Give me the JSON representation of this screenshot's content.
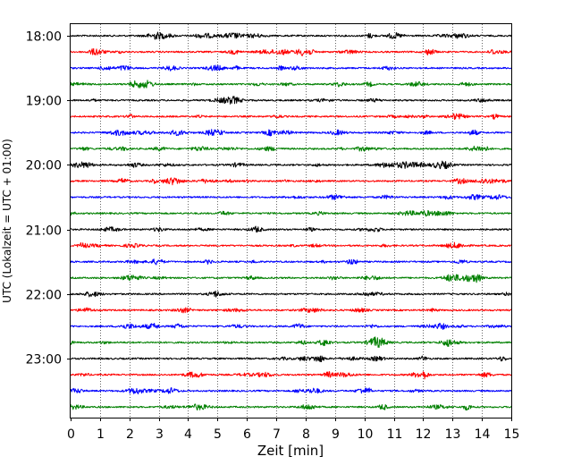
{
  "chart_data": {
    "type": "line",
    "title": "",
    "xlabel": "Zeit  [min]",
    "ylabel": "UTC (Lokalzeit = UTC + 01:00)",
    "xlim": [
      0,
      15
    ],
    "x_ticks": [
      "0",
      "1",
      "2",
      "3",
      "4",
      "5",
      "6",
      "7",
      "8",
      "9",
      "10",
      "11",
      "12",
      "13",
      "14",
      "15"
    ],
    "y_tick_labels": [
      "18:00",
      "19:00",
      "20:00",
      "21:00",
      "22:00",
      "23:00"
    ],
    "grid": "vertical dotted",
    "trace_interval_minutes": 15,
    "trace_colors": [
      "#000000",
      "#ff0000",
      "#0000ff",
      "#008000"
    ],
    "series": [
      {
        "start": "18:00",
        "color": "#000000"
      },
      {
        "start": "18:15",
        "color": "#ff0000"
      },
      {
        "start": "18:30",
        "color": "#0000ff"
      },
      {
        "start": "18:45",
        "color": "#008000"
      },
      {
        "start": "19:00",
        "color": "#000000"
      },
      {
        "start": "19:15",
        "color": "#ff0000"
      },
      {
        "start": "19:30",
        "color": "#0000ff"
      },
      {
        "start": "19:45",
        "color": "#008000"
      },
      {
        "start": "20:00",
        "color": "#000000"
      },
      {
        "start": "20:15",
        "color": "#ff0000"
      },
      {
        "start": "20:30",
        "color": "#0000ff"
      },
      {
        "start": "20:45",
        "color": "#008000"
      },
      {
        "start": "21:00",
        "color": "#000000"
      },
      {
        "start": "21:15",
        "color": "#ff0000"
      },
      {
        "start": "21:30",
        "color": "#0000ff"
      },
      {
        "start": "21:45",
        "color": "#008000"
      },
      {
        "start": "22:00",
        "color": "#000000"
      },
      {
        "start": "22:15",
        "color": "#ff0000"
      },
      {
        "start": "22:30",
        "color": "#0000ff"
      },
      {
        "start": "22:45",
        "color": "#008000"
      },
      {
        "start": "23:00",
        "color": "#000000"
      },
      {
        "start": "23:15",
        "color": "#ff0000"
      },
      {
        "start": "23:30",
        "color": "#0000ff"
      },
      {
        "start": "23:45",
        "color": "#008000"
      }
    ]
  }
}
